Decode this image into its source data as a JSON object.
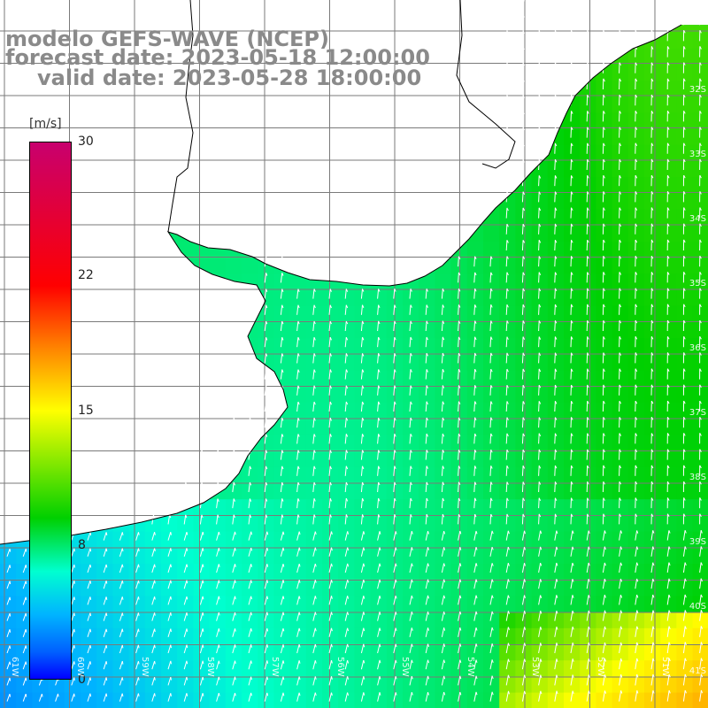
{
  "header": {
    "model": "modelo GEFS-WAVE (NCEP)",
    "forecast": "forecast date: 2023-05-18 12:00:00",
    "valid": "valid date: 2023-05-28 18:00:00"
  },
  "colorbar": {
    "unit": "[m/s]",
    "ticks": [
      {
        "label": "30",
        "value": 30
      },
      {
        "label": "22",
        "value": 22
      },
      {
        "label": "15",
        "value": 15
      },
      {
        "label": "8",
        "value": 8
      },
      {
        "label": "0",
        "value": 0
      }
    ],
    "colors": [
      "#0000ff",
      "#0060ff",
      "#00b4ff",
      "#00ffd0",
      "#00d000",
      "#ffff00",
      "#ff8000",
      "#ff0000",
      "#c8006e"
    ]
  },
  "axes": {
    "lat_labels": [
      "32S",
      "33S",
      "34S",
      "35S",
      "36S",
      "37S",
      "38S",
      "39S",
      "40S",
      "41S"
    ],
    "lon_labels": [
      "61W",
      "60W",
      "59W",
      "58W",
      "57W",
      "56W",
      "55W",
      "54W",
      "53W",
      "52W",
      "51W"
    ]
  },
  "colors": {
    "land": "#ffffff",
    "coastline": "#000000",
    "grid": "#7a7a7a",
    "arrow": "#ffffff",
    "header_text": "#8a8a8a"
  }
}
